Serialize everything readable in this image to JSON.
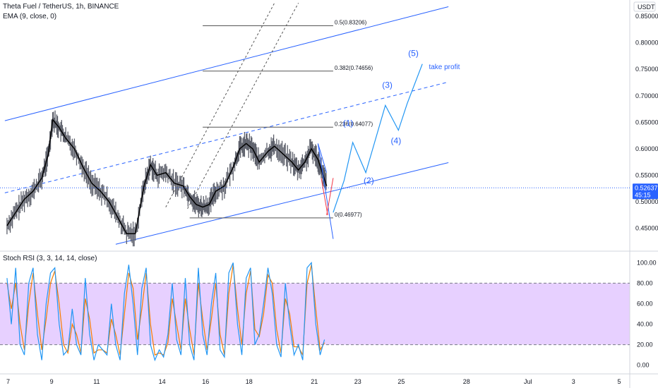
{
  "header": {
    "symbol_line": "Theta Fuel / TetherUS, 1h, BINANCE",
    "ema_line": "EMA (9, close, 0)",
    "rsi_line": "Stoch RSI (3, 3, 14, 14, close)",
    "currency": "USDT"
  },
  "price_badge": {
    "price": "0.52637",
    "countdown": "45:15",
    "color": "#2962ff"
  },
  "colors": {
    "channel": "#2962ff",
    "projection": "#2196f3",
    "ema": "#000000",
    "candle": "#5d606b",
    "k_line": "#2196f3",
    "d_line": "#f57c00",
    "rsi_band": "#e1c4ff",
    "warn_line": "#f23645"
  },
  "chart_data": [
    {
      "type": "line",
      "title": "Theta Fuel / TetherUS, 1h, BINANCE",
      "y_scale": "linear",
      "y_ticks": [
        "0.85000",
        "0.80000",
        "0.75000",
        "0.70000",
        "0.65000",
        "0.60000",
        "0.55000",
        "0.50000",
        "0.45000"
      ],
      "ylim": [
        0.415,
        0.87
      ],
      "x_ticks": [
        "7",
        "9",
        "11",
        "14",
        "16",
        "18",
        "21",
        "23",
        "25",
        "28",
        "Jul",
        "3",
        "5"
      ],
      "series": [
        {
          "name": "EMA (9, close, 0)",
          "x": [
            6.9,
            7.3,
            7.7,
            8.1,
            8.5,
            8.8,
            9.0,
            9.3,
            9.6,
            10.0,
            10.4,
            10.8,
            11.2,
            11.6,
            12.0,
            12.4,
            12.8,
            13.2,
            13.5,
            13.8,
            14.2,
            14.6,
            15.0,
            15.3,
            15.6,
            15.9,
            16.2,
            16.5,
            16.9,
            17.3,
            17.6,
            17.9,
            18.2,
            18.5,
            18.9,
            19.2,
            19.6,
            20.0,
            20.3,
            20.6,
            20.9,
            21.2,
            21.4,
            21.6
          ],
          "values": [
            0.455,
            0.48,
            0.505,
            0.52,
            0.545,
            0.59,
            0.655,
            0.64,
            0.62,
            0.6,
            0.565,
            0.535,
            0.52,
            0.5,
            0.47,
            0.44,
            0.44,
            0.53,
            0.57,
            0.55,
            0.555,
            0.535,
            0.53,
            0.51,
            0.495,
            0.49,
            0.495,
            0.52,
            0.53,
            0.565,
            0.6,
            0.61,
            0.6,
            0.575,
            0.595,
            0.605,
            0.59,
            0.575,
            0.56,
            0.575,
            0.6,
            0.58,
            0.555,
            0.53
          ]
        }
      ],
      "fib_levels": [
        {
          "label": "0.5(0.83206)",
          "value": 0.83206
        },
        {
          "label": "0.382(0.74656)",
          "value": 0.74656
        },
        {
          "label": "0.236(0.64077)",
          "value": 0.64077
        },
        {
          "label": "0(0.46977)",
          "value": 0.46977
        }
      ],
      "wave_labels": [
        "(1)",
        "(2)",
        "(3)",
        "(4)",
        "(5)"
      ],
      "projection_path": {
        "x": [
          21.9,
          22.4,
          22.8,
          23.4,
          24.3,
          24.9,
          25.3,
          26.0
        ],
        "values": [
          0.48,
          0.54,
          0.612,
          0.555,
          0.682,
          0.635,
          0.685,
          0.76
        ]
      },
      "annotations": [
        "take profit"
      ]
    },
    {
      "type": "line",
      "title": "Stoch RSI (3, 3, 14, 14, close)",
      "y_ticks": [
        "100.00",
        "80.00",
        "60.00",
        "40.00",
        "20.00",
        "0.00"
      ],
      "ylim": [
        -5,
        103
      ],
      "bands": [
        20,
        80
      ],
      "series": [
        {
          "name": "K",
          "x": [
            6.9,
            7.1,
            7.3,
            7.5,
            7.7,
            7.9,
            8.1,
            8.3,
            8.5,
            8.7,
            8.9,
            9.1,
            9.3,
            9.5,
            9.7,
            9.9,
            10.1,
            10.3,
            10.5,
            10.7,
            10.9,
            11.1,
            11.3,
            11.5,
            11.7,
            11.9,
            12.1,
            12.3,
            12.5,
            12.7,
            12.9,
            13.1,
            13.3,
            13.5,
            13.7,
            13.9,
            14.1,
            14.3,
            14.5,
            14.7,
            14.9,
            15.1,
            15.3,
            15.5,
            15.7,
            15.9,
            16.1,
            16.3,
            16.5,
            16.7,
            16.9,
            17.1,
            17.3,
            17.5,
            17.7,
            17.9,
            18.1,
            18.3,
            18.5,
            18.7,
            18.9,
            19.1,
            19.3,
            19.5,
            19.7,
            19.9,
            20.1,
            20.3,
            20.5,
            20.7,
            20.9,
            21.1,
            21.3,
            21.5
          ],
          "values": [
            85,
            40,
            95,
            20,
            10,
            80,
            95,
            30,
            5,
            60,
            90,
            95,
            40,
            10,
            15,
            55,
            20,
            10,
            85,
            30,
            5,
            20,
            15,
            10,
            60,
            20,
            5,
            70,
            98,
            60,
            10,
            75,
            95,
            20,
            5,
            15,
            8,
            30,
            80,
            25,
            10,
            85,
            20,
            5,
            95,
            30,
            10,
            60,
            90,
            15,
            8,
            90,
            100,
            40,
            10,
            85,
            95,
            20,
            30,
            60,
            95,
            70,
            20,
            8,
            80,
            40,
            10,
            20,
            5,
            95,
            100,
            40,
            10,
            25
          ]
        },
        {
          "name": "D",
          "x": [
            6.9,
            7.1,
            7.3,
            7.5,
            7.7,
            7.9,
            8.1,
            8.3,
            8.5,
            8.7,
            8.9,
            9.1,
            9.3,
            9.5,
            9.7,
            9.9,
            10.1,
            10.3,
            10.5,
            10.7,
            10.9,
            11.1,
            11.3,
            11.5,
            11.7,
            11.9,
            12.1,
            12.3,
            12.5,
            12.7,
            12.9,
            13.1,
            13.3,
            13.5,
            13.7,
            13.9,
            14.1,
            14.3,
            14.5,
            14.7,
            14.9,
            15.1,
            15.3,
            15.5,
            15.7,
            15.9,
            16.1,
            16.3,
            16.5,
            16.7,
            16.9,
            17.1,
            17.3,
            17.5,
            17.7,
            17.9,
            18.1,
            18.3,
            18.5,
            18.7,
            18.9,
            19.1,
            19.3,
            19.5,
            19.7,
            19.9,
            20.1,
            20.3,
            20.5,
            20.7,
            20.9,
            21.1,
            21.3,
            21.5
          ],
          "values": [
            80,
            55,
            80,
            40,
            15,
            60,
            90,
            50,
            15,
            45,
            80,
            92,
            60,
            20,
            12,
            40,
            30,
            12,
            65,
            45,
            12,
            15,
            15,
            12,
            45,
            30,
            10,
            50,
            90,
            75,
            25,
            55,
            90,
            40,
            10,
            12,
            10,
            22,
            65,
            40,
            15,
            65,
            35,
            10,
            80,
            45,
            15,
            45,
            80,
            30,
            10,
            70,
            98,
            55,
            20,
            70,
            92,
            35,
            28,
            50,
            88,
            80,
            35,
            12,
            65,
            50,
            18,
            18,
            10,
            80,
            98,
            55,
            15,
            22
          ]
        }
      ]
    }
  ]
}
